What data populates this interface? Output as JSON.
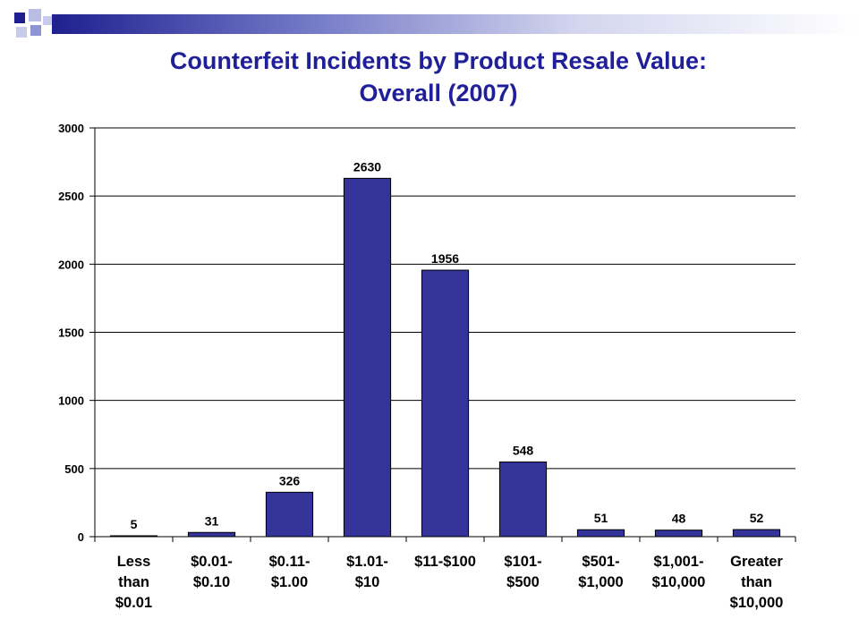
{
  "slide": {
    "title_line1": "Counterfeit Incidents by Product Resale Value:",
    "title_line2": "Overall (2007)",
    "accent_color": "#1f1f99",
    "bar_color": "#333399"
  },
  "chart_data": {
    "type": "bar",
    "title": "Counterfeit Incidents by Product Resale Value: Overall (2007)",
    "xlabel": "",
    "ylabel": "",
    "categories": [
      [
        "Less",
        "than",
        "$0.01"
      ],
      [
        "$0.01-",
        "$0.10"
      ],
      [
        "$0.11-",
        "$1.00"
      ],
      [
        "$1.01-",
        "$10"
      ],
      [
        "$11-$100"
      ],
      [
        "$101-",
        "$500"
      ],
      [
        "$501-",
        "$1,000"
      ],
      [
        "$1,001-",
        "$10,000"
      ],
      [
        "Greater",
        "than",
        "$10,000"
      ]
    ],
    "values": [
      5,
      31,
      326,
      2630,
      1956,
      548,
      51,
      48,
      52
    ],
    "data_labels": [
      "5",
      "31",
      "326",
      "2630",
      "1956",
      "548",
      "51",
      "48",
      "52"
    ],
    "ylim": [
      0,
      3000
    ],
    "yticks": [
      0,
      500,
      1000,
      1500,
      2000,
      2500,
      3000
    ],
    "grid": true,
    "legend": "none"
  }
}
